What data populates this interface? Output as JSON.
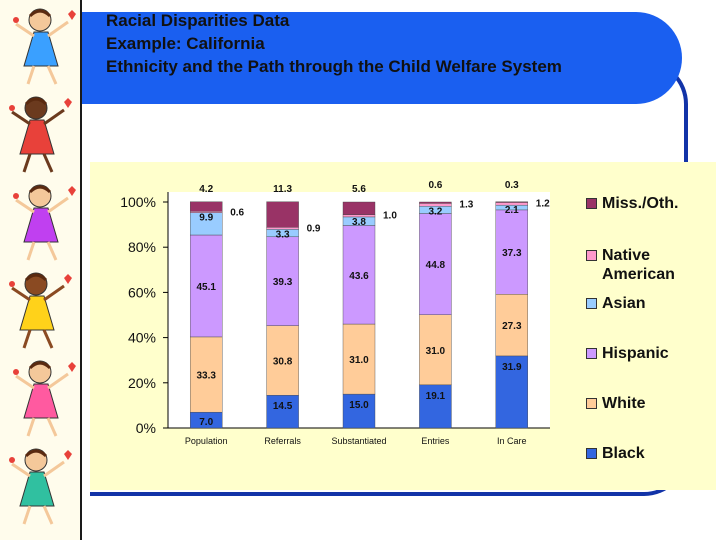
{
  "title": {
    "line1": "Racial Disparities Data",
    "line2": "Example: California",
    "line3": "Ethnicity and the Path through the Child Welfare System"
  },
  "colors": {
    "banner": "#1a5ff0",
    "panel": "#ffffcc",
    "black": "#3366e0",
    "white": "#ffcc99",
    "hispanic": "#cc99ff",
    "asian": "#99ccff",
    "native": "#ff99cc",
    "miss": "#993366"
  },
  "chart_data": {
    "type": "bar",
    "stacked": true,
    "percent": true,
    "ylim": [
      0,
      100
    ],
    "yticks": [
      "0%",
      "20%",
      "40%",
      "60%",
      "80%",
      "100%"
    ],
    "categories": [
      "Population",
      "Referrals",
      "Substantiated",
      "Entries",
      "In Care"
    ],
    "series": [
      {
        "name": "Black",
        "key": "black",
        "values": [
          7.0,
          14.5,
          15.0,
          19.1,
          31.9
        ]
      },
      {
        "name": "White",
        "key": "white",
        "values": [
          33.3,
          30.8,
          31.0,
          31.0,
          27.3
        ]
      },
      {
        "name": "Hispanic",
        "key": "hispanic",
        "values": [
          45.1,
          39.3,
          43.6,
          44.8,
          37.3
        ]
      },
      {
        "name": "Asian",
        "key": "asian",
        "values": [
          9.9,
          3.3,
          3.8,
          3.2,
          2.1
        ]
      },
      {
        "name": "Native American",
        "key": "native",
        "values": [
          0.6,
          0.9,
          1.0,
          1.3,
          1.2
        ]
      },
      {
        "name": "Miss./Oth.",
        "key": "miss",
        "values": [
          4.2,
          11.3,
          5.6,
          0.6,
          0.3
        ]
      }
    ],
    "value_labels": {
      "black": [
        "7.0",
        "14.5",
        "15.0",
        "19.1",
        "31.9"
      ],
      "white": [
        "33.3",
        "30.8",
        "31.0",
        "31.0",
        "27.3"
      ],
      "hispanic": [
        "45.1",
        "39.3",
        "43.6",
        "44.8",
        "37.3"
      ],
      "asian": [
        "9.9",
        "3.3",
        "3.8",
        "3.2",
        "2.1"
      ],
      "native": [
        "0.6",
        "0.9",
        "1.0",
        "1.3",
        "1.2"
      ],
      "miss": [
        "4.2",
        "11.3",
        "5.6",
        "0.6",
        "0.3"
      ]
    },
    "legend": [
      {
        "key": "miss",
        "label": "Miss./Oth."
      },
      {
        "key": "native",
        "label": "Native American"
      },
      {
        "key": "asian",
        "label": "Asian"
      },
      {
        "key": "hispanic",
        "label": "Hispanic"
      },
      {
        "key": "white",
        "label": "White"
      },
      {
        "key": "black",
        "label": "Black"
      }
    ]
  },
  "decorations": {
    "sidebar_icons": [
      "dancing-child-icon",
      "dancing-child-icon",
      "dancing-child-icon",
      "dancing-child-icon",
      "dancing-child-icon",
      "dancing-child-icon"
    ]
  }
}
